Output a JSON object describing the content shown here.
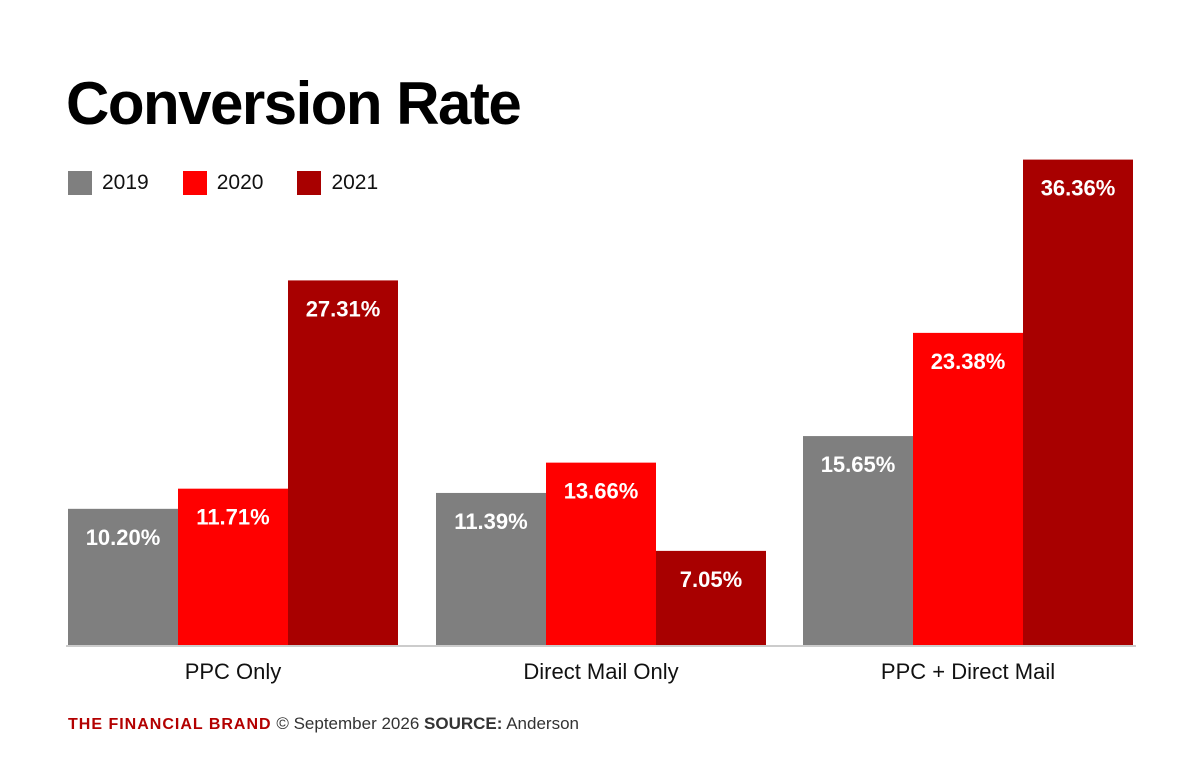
{
  "chart_data": {
    "type": "bar",
    "title": "Conversion Rate",
    "xlabel": "",
    "ylabel": "",
    "ylim": [
      0,
      40
    ],
    "grid": false,
    "legend_position": "top-left",
    "categories": [
      "PPC Only",
      "Direct Mail Only",
      "PPC + Direct Mail"
    ],
    "series": [
      {
        "name": "2019",
        "color": "#7f7f7f",
        "values": [
          10.2,
          11.39,
          15.65
        ],
        "labels": [
          "10.20%",
          "11.39%",
          "15.65%"
        ]
      },
      {
        "name": "2020",
        "color": "#ff0000",
        "values": [
          11.71,
          13.66,
          23.38
        ],
        "labels": [
          "11.71%",
          "13.66%",
          "23.38%"
        ]
      },
      {
        "name": "2021",
        "color": "#a80000",
        "values": [
          27.31,
          7.05,
          36.36
        ],
        "labels": [
          "27.31%",
          "7.05%",
          "36.36%"
        ]
      }
    ]
  },
  "footer": {
    "brand": "THE FINANCIAL BRAND",
    "copyright": "© September 2026",
    "source_label": "SOURCE:",
    "source": "Anderson"
  }
}
